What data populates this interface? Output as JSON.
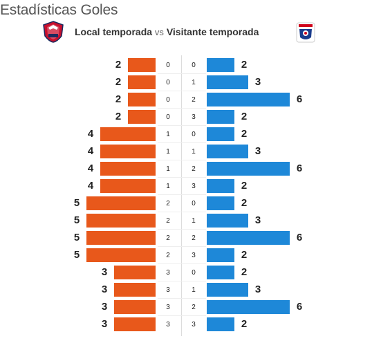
{
  "title": "Estadísticas Goles",
  "legend": {
    "home": "Local temporada",
    "vs": "vs",
    "away": "Visitante temporada"
  },
  "colors": {
    "home": "#e8581b",
    "away": "#1e88d8"
  },
  "icons": {
    "home_logo": "losc-lille-crest-icon",
    "away_logo": "olympique-lyonnais-crest-icon"
  },
  "rows": [
    {
      "home_value": 2,
      "home_goals": 0,
      "away_goals": 0,
      "away_value": 2
    },
    {
      "home_value": 2,
      "home_goals": 0,
      "away_goals": 1,
      "away_value": 3
    },
    {
      "home_value": 2,
      "home_goals": 0,
      "away_goals": 2,
      "away_value": 6
    },
    {
      "home_value": 2,
      "home_goals": 0,
      "away_goals": 3,
      "away_value": 2
    },
    {
      "home_value": 4,
      "home_goals": 1,
      "away_goals": 0,
      "away_value": 2
    },
    {
      "home_value": 4,
      "home_goals": 1,
      "away_goals": 1,
      "away_value": 3
    },
    {
      "home_value": 4,
      "home_goals": 1,
      "away_goals": 2,
      "away_value": 6
    },
    {
      "home_value": 4,
      "home_goals": 1,
      "away_goals": 3,
      "away_value": 2
    },
    {
      "home_value": 5,
      "home_goals": 2,
      "away_goals": 0,
      "away_value": 2
    },
    {
      "home_value": 5,
      "home_goals": 2,
      "away_goals": 1,
      "away_value": 3
    },
    {
      "home_value": 5,
      "home_goals": 2,
      "away_goals": 2,
      "away_value": 6
    },
    {
      "home_value": 5,
      "home_goals": 2,
      "away_goals": 3,
      "away_value": 2
    },
    {
      "home_value": 3,
      "home_goals": 3,
      "away_goals": 0,
      "away_value": 2
    },
    {
      "home_value": 3,
      "home_goals": 3,
      "away_goals": 1,
      "away_value": 3
    },
    {
      "home_value": 3,
      "home_goals": 3,
      "away_goals": 2,
      "away_value": 6
    },
    {
      "home_value": 3,
      "home_goals": 3,
      "away_goals": 3,
      "away_value": 2
    }
  ]
}
